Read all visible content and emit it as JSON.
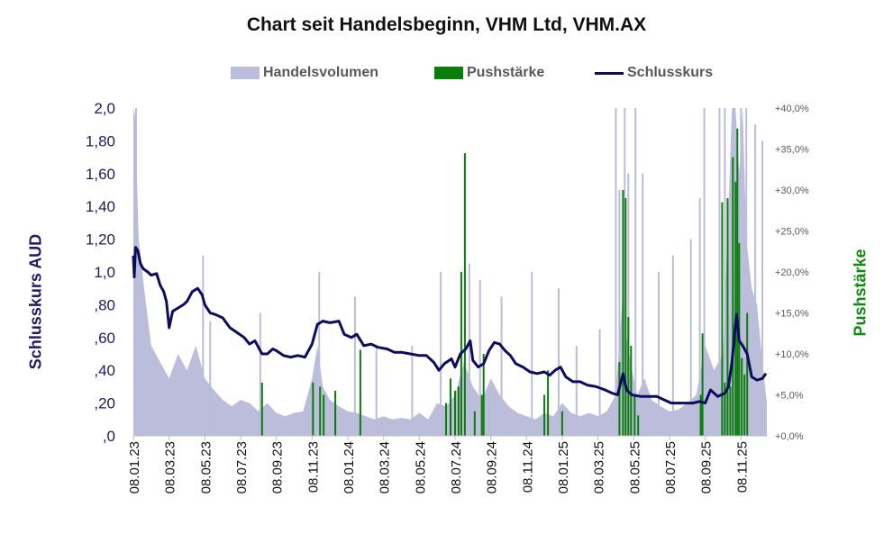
{
  "chart_data": {
    "type": "line",
    "title": "Chart seit Handelsbeginn, VHM Ltd, VHM.AX",
    "legend": [
      {
        "name": "Handelsvolumen",
        "color": "#bcbcdb",
        "kind": "area"
      },
      {
        "name": "Pushstärke",
        "color": "#0a7d0a",
        "kind": "bar"
      },
      {
        "name": "Schlusskurs",
        "color": "#0d0d5e",
        "kind": "line"
      }
    ],
    "ylabel_left": "Schlusskurs AUD",
    "ylabel_right": "Pushstärke",
    "ylim_left": [
      0,
      2.0
    ],
    "ylim_right": [
      0,
      40
    ],
    "left_ticks": [
      {
        "v": 0,
        "label": ",0"
      },
      {
        "v": 0.2,
        "label": ",20"
      },
      {
        "v": 0.4,
        "label": ",40"
      },
      {
        "v": 0.6,
        "label": ",60"
      },
      {
        "v": 0.8,
        "label": ",80"
      },
      {
        "v": 1.0,
        "label": "1,0"
      },
      {
        "v": 1.2,
        "label": "1,20"
      },
      {
        "v": 1.4,
        "label": "1,40"
      },
      {
        "v": 1.6,
        "label": "1,60"
      },
      {
        "v": 1.8,
        "label": "1,80"
      },
      {
        "v": 2.0,
        "label": "2,0"
      }
    ],
    "right_ticks": [
      {
        "v": 0,
        "label": "+0,0%"
      },
      {
        "v": 5,
        "label": "+5,0%"
      },
      {
        "v": 10,
        "label": "+10,0%"
      },
      {
        "v": 15,
        "label": "+15,0%"
      },
      {
        "v": 20,
        "label": "+20,0%"
      },
      {
        "v": 25,
        "label": "+25,0%"
      },
      {
        "v": 30,
        "label": "+30,0%"
      },
      {
        "v": 35,
        "label": "+35,0%"
      },
      {
        "v": 40,
        "label": "+40,0%"
      }
    ],
    "x_range": [
      0,
      35.5
    ],
    "x_ticks": [
      {
        "t": 0,
        "label": "08.01.23"
      },
      {
        "t": 2,
        "label": "08.03.23"
      },
      {
        "t": 4,
        "label": "08.05.23"
      },
      {
        "t": 6,
        "label": "08.07.23"
      },
      {
        "t": 8,
        "label": "08.09.23"
      },
      {
        "t": 10,
        "label": "08.11.23"
      },
      {
        "t": 12,
        "label": "08.01.24"
      },
      {
        "t": 14,
        "label": "08.03.24"
      },
      {
        "t": 16,
        "label": "08.05.24"
      },
      {
        "t": 18,
        "label": "08.07.24"
      },
      {
        "t": 20,
        "label": "08.09.24"
      },
      {
        "t": 22,
        "label": "08.11.24"
      },
      {
        "t": 24,
        "label": "08.01.25"
      },
      {
        "t": 26,
        "label": "08.03.25"
      },
      {
        "t": 28,
        "label": "08.05.25"
      },
      {
        "t": 30,
        "label": "08.07.25"
      },
      {
        "t": 32,
        "label": "08.09.25"
      },
      {
        "t": 34,
        "label": "08.11.25"
      }
    ],
    "close_series": [
      [
        0,
        1.1
      ],
      [
        0.05,
        0.97
      ],
      [
        0.12,
        1.15
      ],
      [
        0.25,
        1.13
      ],
      [
        0.4,
        1.05
      ],
      [
        0.55,
        1.02
      ],
      [
        0.8,
        1.0
      ],
      [
        1.0,
        0.98
      ],
      [
        1.3,
        0.99
      ],
      [
        1.5,
        0.92
      ],
      [
        1.7,
        0.88
      ],
      [
        1.85,
        0.82
      ],
      [
        2.0,
        0.66
      ],
      [
        2.2,
        0.76
      ],
      [
        2.5,
        0.78
      ],
      [
        2.8,
        0.8
      ],
      [
        3.0,
        0.82
      ],
      [
        3.3,
        0.88
      ],
      [
        3.6,
        0.9
      ],
      [
        3.85,
        0.86
      ],
      [
        4.0,
        0.8
      ],
      [
        4.3,
        0.75
      ],
      [
        4.6,
        0.74
      ],
      [
        5.0,
        0.72
      ],
      [
        5.4,
        0.66
      ],
      [
        5.8,
        0.63
      ],
      [
        6.2,
        0.6
      ],
      [
        6.5,
        0.56
      ],
      [
        6.8,
        0.58
      ],
      [
        7.2,
        0.5
      ],
      [
        7.5,
        0.5
      ],
      [
        7.8,
        0.53
      ],
      [
        8.0,
        0.52
      ],
      [
        8.4,
        0.49
      ],
      [
        8.8,
        0.48
      ],
      [
        9.2,
        0.49
      ],
      [
        9.6,
        0.48
      ],
      [
        10.0,
        0.56
      ],
      [
        10.3,
        0.68
      ],
      [
        10.6,
        0.7
      ],
      [
        11.0,
        0.69
      ],
      [
        11.5,
        0.7
      ],
      [
        11.8,
        0.62
      ],
      [
        12.2,
        0.6
      ],
      [
        12.5,
        0.62
      ],
      [
        12.9,
        0.55
      ],
      [
        13.3,
        0.56
      ],
      [
        13.7,
        0.54
      ],
      [
        14.2,
        0.53
      ],
      [
        14.6,
        0.51
      ],
      [
        15.0,
        0.51
      ],
      [
        15.5,
        0.5
      ],
      [
        16.0,
        0.49
      ],
      [
        16.4,
        0.49
      ],
      [
        16.8,
        0.45
      ],
      [
        17.1,
        0.4
      ],
      [
        17.4,
        0.44
      ],
      [
        17.8,
        0.47
      ],
      [
        18.0,
        0.42
      ],
      [
        18.3,
        0.5
      ],
      [
        18.6,
        0.53
      ],
      [
        18.85,
        0.58
      ],
      [
        19.0,
        0.46
      ],
      [
        19.3,
        0.42
      ],
      [
        19.6,
        0.44
      ],
      [
        19.9,
        0.52
      ],
      [
        20.2,
        0.57
      ],
      [
        20.5,
        0.56
      ],
      [
        20.8,
        0.52
      ],
      [
        21.1,
        0.49
      ],
      [
        21.4,
        0.44
      ],
      [
        21.8,
        0.42
      ],
      [
        22.2,
        0.39
      ],
      [
        22.6,
        0.38
      ],
      [
        23.0,
        0.39
      ],
      [
        23.3,
        0.37
      ],
      [
        23.6,
        0.4
      ],
      [
        23.9,
        0.42
      ],
      [
        24.2,
        0.36
      ],
      [
        24.6,
        0.33
      ],
      [
        25.0,
        0.33
      ],
      [
        25.4,
        0.31
      ],
      [
        25.9,
        0.3
      ],
      [
        26.4,
        0.28
      ],
      [
        26.8,
        0.26
      ],
      [
        27.1,
        0.25
      ],
      [
        27.4,
        0.38
      ],
      [
        27.6,
        0.28
      ],
      [
        27.9,
        0.25
      ],
      [
        28.4,
        0.24
      ],
      [
        28.9,
        0.24
      ],
      [
        29.3,
        0.24
      ],
      [
        29.7,
        0.22
      ],
      [
        30.1,
        0.2
      ],
      [
        30.5,
        0.2
      ],
      [
        30.9,
        0.2
      ],
      [
        31.3,
        0.2
      ],
      [
        31.7,
        0.21
      ],
      [
        32.0,
        0.2
      ],
      [
        32.3,
        0.28
      ],
      [
        32.7,
        0.24
      ],
      [
        33.1,
        0.26
      ],
      [
        33.3,
        0.3
      ],
      [
        33.5,
        0.45
      ],
      [
        33.75,
        0.74
      ],
      [
        33.9,
        0.58
      ],
      [
        34.1,
        0.55
      ],
      [
        34.35,
        0.5
      ],
      [
        34.6,
        0.36
      ],
      [
        34.9,
        0.34
      ],
      [
        35.2,
        0.35
      ],
      [
        35.4,
        0.38
      ]
    ],
    "volume_series": [
      [
        0,
        2.0
      ],
      [
        0.1,
        1.95
      ],
      [
        0.3,
        1.2
      ],
      [
        0.6,
        0.9
      ],
      [
        1.0,
        0.55
      ],
      [
        1.5,
        0.45
      ],
      [
        2.0,
        0.35
      ],
      [
        2.5,
        0.5
      ],
      [
        3.0,
        0.4
      ],
      [
        3.5,
        0.55
      ],
      [
        4.0,
        0.35
      ],
      [
        4.5,
        0.28
      ],
      [
        5.0,
        0.22
      ],
      [
        5.5,
        0.18
      ],
      [
        6.0,
        0.22
      ],
      [
        6.5,
        0.2
      ],
      [
        7.0,
        0.15
      ],
      [
        7.5,
        0.2
      ],
      [
        8.0,
        0.14
      ],
      [
        8.5,
        0.12
      ],
      [
        9.0,
        0.14
      ],
      [
        9.5,
        0.15
      ],
      [
        10.0,
        0.35
      ],
      [
        10.3,
        0.55
      ],
      [
        10.6,
        0.3
      ],
      [
        11.0,
        0.22
      ],
      [
        11.5,
        0.18
      ],
      [
        12.0,
        0.15
      ],
      [
        12.5,
        0.14
      ],
      [
        13.0,
        0.12
      ],
      [
        13.5,
        0.1
      ],
      [
        14.0,
        0.12
      ],
      [
        14.5,
        0.1
      ],
      [
        15.0,
        0.11
      ],
      [
        15.5,
        0.1
      ],
      [
        16.0,
        0.14
      ],
      [
        16.5,
        0.1
      ],
      [
        17.0,
        0.2
      ],
      [
        17.5,
        0.18
      ],
      [
        18.0,
        0.25
      ],
      [
        18.5,
        0.45
      ],
      [
        19.0,
        0.3
      ],
      [
        19.5,
        0.22
      ],
      [
        20.0,
        0.35
      ],
      [
        20.5,
        0.25
      ],
      [
        21.0,
        0.18
      ],
      [
        21.5,
        0.14
      ],
      [
        22.0,
        0.12
      ],
      [
        22.5,
        0.1
      ],
      [
        23.0,
        0.14
      ],
      [
        23.5,
        0.12
      ],
      [
        24.0,
        0.2
      ],
      [
        24.5,
        0.14
      ],
      [
        25.0,
        0.12
      ],
      [
        25.5,
        0.14
      ],
      [
        26.0,
        0.12
      ],
      [
        26.5,
        0.15
      ],
      [
        27.0,
        0.25
      ],
      [
        27.4,
        0.9
      ],
      [
        27.6,
        0.6
      ],
      [
        27.9,
        0.4
      ],
      [
        28.2,
        0.25
      ],
      [
        28.6,
        0.35
      ],
      [
        29.0,
        0.22
      ],
      [
        29.5,
        0.18
      ],
      [
        30.0,
        0.15
      ],
      [
        30.5,
        0.16
      ],
      [
        31.0,
        0.2
      ],
      [
        31.5,
        0.25
      ],
      [
        32.0,
        0.55
      ],
      [
        32.5,
        0.4
      ],
      [
        33.0,
        0.5
      ],
      [
        33.3,
        1.4
      ],
      [
        33.5,
        2.0
      ],
      [
        33.7,
        2.0
      ],
      [
        33.9,
        1.6
      ],
      [
        34.1,
        2.0
      ],
      [
        34.3,
        1.2
      ],
      [
        34.6,
        0.9
      ],
      [
        34.9,
        0.8
      ],
      [
        35.2,
        0.45
      ],
      [
        35.45,
        0.2
      ]
    ],
    "volume_spikes": [
      [
        0.15,
        2.0
      ],
      [
        3.9,
        1.1
      ],
      [
        4.3,
        0.7
      ],
      [
        7.1,
        0.75
      ],
      [
        10.4,
        1.0
      ],
      [
        12.4,
        0.85
      ],
      [
        13.6,
        0.55
      ],
      [
        15.6,
        0.55
      ],
      [
        17.2,
        1.0
      ],
      [
        18.8,
        1.05
      ],
      [
        19.4,
        0.95
      ],
      [
        20.6,
        0.85
      ],
      [
        22.3,
        1.0
      ],
      [
        23.8,
        0.9
      ],
      [
        24.8,
        0.55
      ],
      [
        26.1,
        0.65
      ],
      [
        27.0,
        2.0
      ],
      [
        27.2,
        1.5
      ],
      [
        27.5,
        2.0
      ],
      [
        27.7,
        1.6
      ],
      [
        28.1,
        2.0
      ],
      [
        28.5,
        1.6
      ],
      [
        29.4,
        1.0
      ],
      [
        30.2,
        1.1
      ],
      [
        31.2,
        1.2
      ],
      [
        31.7,
        1.45
      ],
      [
        31.95,
        2.0
      ],
      [
        32.8,
        2.0
      ],
      [
        33.1,
        2.0
      ],
      [
        33.6,
        2.0
      ],
      [
        34.0,
        2.0
      ],
      [
        34.3,
        2.0
      ],
      [
        34.8,
        1.9
      ],
      [
        35.2,
        1.8
      ]
    ],
    "push_bars": [
      [
        7.2,
        6.5
      ],
      [
        10.05,
        6.5
      ],
      [
        10.45,
        6.0
      ],
      [
        10.65,
        5.0
      ],
      [
        11.3,
        5.5
      ],
      [
        12.7,
        10.5
      ],
      [
        17.5,
        4.0
      ],
      [
        17.75,
        7.0
      ],
      [
        18.0,
        5.5
      ],
      [
        18.2,
        6.0
      ],
      [
        18.35,
        20.0
      ],
      [
        18.55,
        34.5
      ],
      [
        19.1,
        3.0
      ],
      [
        19.5,
        5.0
      ],
      [
        19.6,
        10.0
      ],
      [
        23.0,
        5.0
      ],
      [
        23.2,
        8.0
      ],
      [
        24.0,
        3.0
      ],
      [
        27.2,
        9.0
      ],
      [
        27.4,
        30.0
      ],
      [
        27.55,
        29.0
      ],
      [
        27.7,
        14.5
      ],
      [
        27.85,
        11.0
      ],
      [
        28.05,
        5.0
      ],
      [
        28.25,
        2.5
      ],
      [
        31.75,
        5.0
      ],
      [
        31.85,
        12.5
      ],
      [
        32.95,
        28.5
      ],
      [
        33.1,
        6.5
      ],
      [
        33.25,
        29.0
      ],
      [
        33.4,
        6.0
      ],
      [
        33.55,
        34.0
      ],
      [
        33.7,
        31.0
      ],
      [
        33.8,
        37.5
      ],
      [
        33.9,
        23.5
      ],
      [
        34.05,
        9.5
      ],
      [
        34.2,
        7.5
      ],
      [
        34.35,
        15.0
      ]
    ]
  }
}
